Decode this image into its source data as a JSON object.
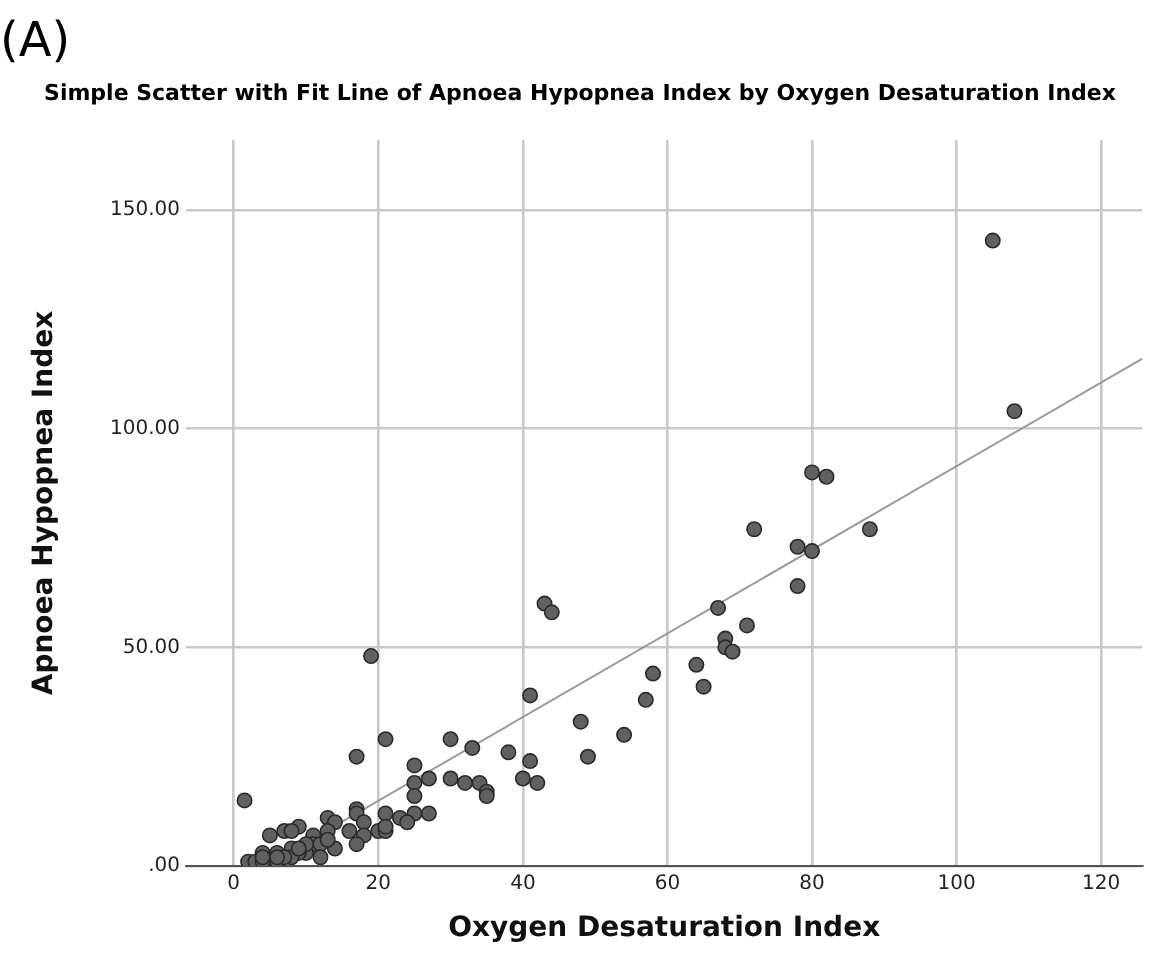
{
  "chart_data": {
    "type": "scatter",
    "title": "Simple Scatter with Fit Line of Apnoea Hypopnea Index by Oxygen Desaturation Index",
    "xlabel": "Oxygen Desaturation Index",
    "ylabel": "Apnoea Hypopnea Index",
    "annotations": [
      "(A)"
    ],
    "xlim": [
      -6.6,
      125.7
    ],
    "ylim": [
      0,
      166
    ],
    "xticks": [
      0,
      20,
      40,
      60,
      80,
      100,
      120
    ],
    "yticks": [
      {
        "value": 0,
        "label": ".00"
      },
      {
        "value": 50,
        "label": "50.00"
      },
      {
        "value": 100,
        "label": "100.00"
      },
      {
        "value": 150,
        "label": "150.00"
      }
    ],
    "grid": true,
    "legend": false,
    "marker": "circle",
    "series": [
      {
        "color": "#616161",
        "x": [
          105,
          108,
          80,
          82,
          72,
          88,
          78,
          80,
          78,
          43,
          44,
          67,
          71,
          68,
          68,
          69,
          19,
          64,
          58,
          65,
          41,
          57,
          48,
          54,
          21,
          30,
          33,
          38,
          17,
          49,
          41,
          25,
          25,
          27,
          30,
          32,
          34,
          40,
          42,
          35,
          35,
          25,
          1.5,
          17,
          17,
          21,
          25,
          27,
          13,
          23,
          24,
          18,
          14,
          9,
          7,
          8,
          16,
          20,
          21,
          21,
          13,
          5,
          11,
          18,
          17,
          11,
          12,
          14,
          8,
          10,
          12,
          4,
          6,
          9,
          2,
          3,
          4,
          6,
          8,
          4,
          7,
          10,
          13,
          9,
          6
        ],
        "values": [
          143,
          104,
          90,
          89,
          77,
          77,
          73,
          72,
          64,
          60,
          58,
          59,
          55,
          52,
          50,
          49,
          48,
          46,
          44,
          41,
          39,
          38,
          33,
          30,
          29,
          29,
          27,
          26,
          25,
          25,
          24,
          23,
          19,
          20,
          20,
          19,
          19,
          20,
          19,
          17,
          16,
          16,
          15,
          13,
          12,
          12,
          12,
          12,
          11,
          11,
          10,
          10,
          10,
          9,
          8,
          8,
          8,
          8,
          8,
          9,
          8,
          7,
          7,
          7,
          5,
          5,
          5,
          4,
          4,
          3,
          2,
          3,
          3,
          3,
          1,
          1,
          1,
          1,
          2,
          2,
          2,
          5,
          6,
          4,
          2
        ]
      },
      {
        "type": "line",
        "color": "#9a9a9a",
        "marker": "none",
        "x": [
          4.4,
          125.7
        ],
        "values": [
          0,
          116
        ]
      }
    ]
  }
}
